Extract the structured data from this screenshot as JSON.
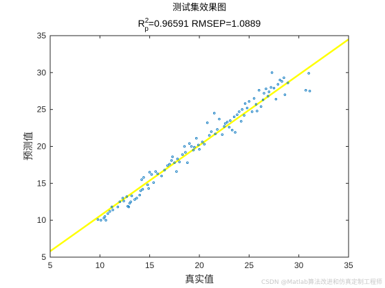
{
  "chart_data": {
    "type": "scatter",
    "title": "测试集效果图",
    "subtitle": {
      "r_base": "R",
      "r_sup": "2",
      "r_sub": "p",
      "rest": "=0.96591  RMSEP=1.0889"
    },
    "xlabel": "真实值",
    "ylabel": "预测值",
    "xlim": [
      5,
      35
    ],
    "ylim": [
      5,
      35
    ],
    "xticks": [
      "5",
      "10",
      "15",
      "20",
      "25",
      "30",
      "35"
    ],
    "yticks": [
      "5",
      "10",
      "15",
      "20",
      "25",
      "30",
      "35"
    ],
    "grid": false,
    "box": true,
    "marker_color": "#0072BD",
    "line_color": "#FFFF00",
    "fit_line": {
      "x": [
        5,
        35
      ],
      "y": [
        5.8,
        34.5
      ]
    },
    "points": [
      [
        9.8,
        10.1
      ],
      [
        10.1,
        10.0
      ],
      [
        10.4,
        10.3
      ],
      [
        10.5,
        10.5
      ],
      [
        10.6,
        10.0
      ],
      [
        10.8,
        10.9
      ],
      [
        11.0,
        11.2
      ],
      [
        11.2,
        11.8
      ],
      [
        11.3,
        11.4
      ],
      [
        11.8,
        11.8
      ],
      [
        12.0,
        12.5
      ],
      [
        12.3,
        13.0
      ],
      [
        12.4,
        12.6
      ],
      [
        12.7,
        13.2
      ],
      [
        12.8,
        11.9
      ],
      [
        12.9,
        11.8
      ],
      [
        13.0,
        12.3
      ],
      [
        13.1,
        12.5
      ],
      [
        13.2,
        13.3
      ],
      [
        13.5,
        12.8
      ],
      [
        13.7,
        13.0
      ],
      [
        14.0,
        13.4
      ],
      [
        14.1,
        14.0
      ],
      [
        14.2,
        15.5
      ],
      [
        14.3,
        14.2
      ],
      [
        14.4,
        15.8
      ],
      [
        14.8,
        14.8
      ],
      [
        14.9,
        14.3
      ],
      [
        15.0,
        16.5
      ],
      [
        15.2,
        16.2
      ],
      [
        15.4,
        15.1
      ],
      [
        15.6,
        16.6
      ],
      [
        15.8,
        16.3
      ],
      [
        16.2,
        16.0
      ],
      [
        16.5,
        16.8
      ],
      [
        16.8,
        17.4
      ],
      [
        17.0,
        17.6
      ],
      [
        17.2,
        18.1
      ],
      [
        17.3,
        18.6
      ],
      [
        17.5,
        17.8
      ],
      [
        17.7,
        16.6
      ],
      [
        17.8,
        18.3
      ],
      [
        18.0,
        17.9
      ],
      [
        18.3,
        18.9
      ],
      [
        18.5,
        20.0
      ],
      [
        18.6,
        19.2
      ],
      [
        18.8,
        17.8
      ],
      [
        19.0,
        20.4
      ],
      [
        19.2,
        20.0
      ],
      [
        19.4,
        19.5
      ],
      [
        19.5,
        19.9
      ],
      [
        19.7,
        21.1
      ],
      [
        19.9,
        20.2
      ],
      [
        20.0,
        19.6
      ],
      [
        20.3,
        20.6
      ],
      [
        20.5,
        20.3
      ],
      [
        20.8,
        23.2
      ],
      [
        21.0,
        21.5
      ],
      [
        21.2,
        22.0
      ],
      [
        21.5,
        24.5
      ],
      [
        21.6,
        21.7
      ],
      [
        21.8,
        22.3
      ],
      [
        22.0,
        23.7
      ],
      [
        22.3,
        21.6
      ],
      [
        22.5,
        22.7
      ],
      [
        22.6,
        23.1
      ],
      [
        22.8,
        23.3
      ],
      [
        23.0,
        22.6
      ],
      [
        23.1,
        23.5
      ],
      [
        23.3,
        22.2
      ],
      [
        23.5,
        24.0
      ],
      [
        23.6,
        21.9
      ],
      [
        23.8,
        24.3
      ],
      [
        24.0,
        24.7
      ],
      [
        24.2,
        23.4
      ],
      [
        24.3,
        25.0
      ],
      [
        24.5,
        24.2
      ],
      [
        24.6,
        25.8
      ],
      [
        24.8,
        25.2
      ],
      [
        25.0,
        26.1
      ],
      [
        25.3,
        24.7
      ],
      [
        25.5,
        26.5
      ],
      [
        25.7,
        25.7
      ],
      [
        25.8,
        24.8
      ],
      [
        26.0,
        27.6
      ],
      [
        26.2,
        25.4
      ],
      [
        26.4,
        26.3
      ],
      [
        26.5,
        27.2
      ],
      [
        26.7,
        27.8
      ],
      [
        26.9,
        26.8
      ],
      [
        27.0,
        27.4
      ],
      [
        27.2,
        28.0
      ],
      [
        27.3,
        30.0
      ],
      [
        27.5,
        27.9
      ],
      [
        27.7,
        26.4
      ],
      [
        27.9,
        28.4
      ],
      [
        28.1,
        29.0
      ],
      [
        28.3,
        28.8
      ],
      [
        28.5,
        29.3
      ],
      [
        28.6,
        27.0
      ],
      [
        28.9,
        28.6
      ],
      [
        30.7,
        27.6
      ],
      [
        31.0,
        29.9
      ],
      [
        31.1,
        27.5
      ]
    ]
  },
  "watermark": "CSDN @Matlab算法改进和仿真定制工程师"
}
